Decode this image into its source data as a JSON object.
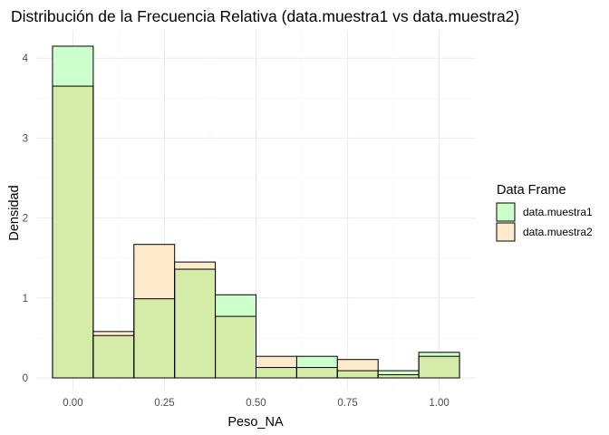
{
  "chart_data": {
    "type": "bar",
    "title": "Distribución de la Frecuencia Relativa (data.muestra1 vs data.muestra2)",
    "xlabel": "Peso_NA",
    "ylabel": "Densidad",
    "xlim": [
      -0.1,
      1.1
    ],
    "ylim": [
      0,
      4.25
    ],
    "x_ticks": [
      {
        "value": 0.0,
        "label": "0.00"
      },
      {
        "value": 0.25,
        "label": "0.25"
      },
      {
        "value": 0.5,
        "label": "0.50"
      },
      {
        "value": 0.75,
        "label": "0.75"
      },
      {
        "value": 1.0,
        "label": "1.00"
      }
    ],
    "y_ticks": [
      {
        "value": 0,
        "label": "0"
      },
      {
        "value": 1,
        "label": "1"
      },
      {
        "value": 2,
        "label": "2"
      },
      {
        "value": 3,
        "label": "3"
      },
      {
        "value": 4,
        "label": "4"
      }
    ],
    "grid": true,
    "legend": {
      "title": "Data Frame",
      "placement": "right"
    },
    "bins": [
      {
        "from": -0.0556,
        "to": 0.0556
      },
      {
        "from": 0.0556,
        "to": 0.1667
      },
      {
        "from": 0.1667,
        "to": 0.2778
      },
      {
        "from": 0.2778,
        "to": 0.3889
      },
      {
        "from": 0.3889,
        "to": 0.5
      },
      {
        "from": 0.5,
        "to": 0.6111
      },
      {
        "from": 0.6111,
        "to": 0.7222
      },
      {
        "from": 0.7222,
        "to": 0.8333
      },
      {
        "from": 0.8333,
        "to": 0.9444
      },
      {
        "from": 0.9444,
        "to": 1.0556
      }
    ],
    "series": [
      {
        "name": "data.muestra1",
        "color": "#ccffcc",
        "values": [
          4.15,
          0.53,
          0.99,
          1.36,
          1.04,
          0.13,
          0.27,
          0.09,
          0.09,
          0.32
        ]
      },
      {
        "name": "data.muestra2",
        "color": "#ffebcc",
        "values": [
          3.65,
          0.58,
          1.67,
          1.45,
          0.77,
          0.27,
          0.13,
          0.23,
          0.04,
          0.27
        ]
      }
    ],
    "overlap_color": "#d5eba8"
  }
}
